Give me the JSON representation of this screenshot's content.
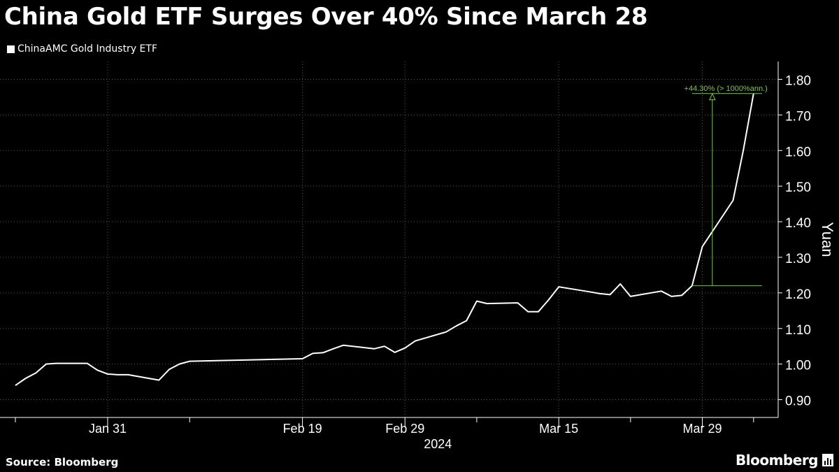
{
  "title": "China Gold ETF Surges Over 40% Since March 28",
  "footer": {
    "source": "Source: Bloomberg",
    "brand": "Bloomberg",
    "brand_icon": "chart-bars-icon"
  },
  "colors": {
    "background": "#000000",
    "line": "#ffffff",
    "annotation": "#7ec850",
    "grid": "#555555"
  },
  "chart_data": {
    "type": "line",
    "title": "China Gold ETF Surges Over 40% Since March 28",
    "ylabel": "Yuan",
    "ylim": [
      0.85,
      1.85
    ],
    "y_ticks": [
      "0.90",
      "1.00",
      "1.10",
      "1.20",
      "1.30",
      "1.40",
      "1.50",
      "1.60",
      "1.70",
      "1.80"
    ],
    "y_axis_side": "right",
    "legend": {
      "placement": "top-left",
      "entries": [
        "ChinaAMC Gold Industry ETF"
      ]
    },
    "x_ticks": [
      "Jan 31",
      "Feb 19",
      "Feb 29",
      "Mar 15",
      "Mar 29"
    ],
    "x_year_label": "2024",
    "grid": true,
    "series": [
      {
        "name": "ChinaAMC Gold Industry ETF",
        "x": [
          "2024-01-22",
          "2024-01-23",
          "2024-01-24",
          "2024-01-25",
          "2024-01-26",
          "2024-01-29",
          "2024-01-30",
          "2024-01-31",
          "2024-02-01",
          "2024-02-02",
          "2024-02-05",
          "2024-02-06",
          "2024-02-07",
          "2024-02-08",
          "2024-02-19",
          "2024-02-20",
          "2024-02-21",
          "2024-02-22",
          "2024-02-23",
          "2024-02-26",
          "2024-02-27",
          "2024-02-28",
          "2024-02-29",
          "2024-03-01",
          "2024-03-04",
          "2024-03-05",
          "2024-03-06",
          "2024-03-07",
          "2024-03-08",
          "2024-03-11",
          "2024-03-12",
          "2024-03-13",
          "2024-03-14",
          "2024-03-15",
          "2024-03-18",
          "2024-03-19",
          "2024-03-20",
          "2024-03-21",
          "2024-03-22",
          "2024-03-25",
          "2024-03-26",
          "2024-03-27",
          "2024-03-28",
          "2024-03-29",
          "2024-04-01",
          "2024-04-02",
          "2024-04-03"
        ],
        "values": [
          0.94,
          0.96,
          0.975,
          1.0,
          1.002,
          1.002,
          0.983,
          0.972,
          0.97,
          0.97,
          0.955,
          0.985,
          1.0,
          1.008,
          1.015,
          1.03,
          1.032,
          1.043,
          1.053,
          1.043,
          1.05,
          1.033,
          1.045,
          1.065,
          1.09,
          1.107,
          1.122,
          1.177,
          1.17,
          1.172,
          1.147,
          1.147,
          1.18,
          1.217,
          1.203,
          1.198,
          1.195,
          1.225,
          1.19,
          1.205,
          1.19,
          1.193,
          1.22,
          1.33,
          1.46,
          1.6,
          1.76
        ]
      }
    ],
    "annotations": [
      {
        "text": "+44.30% (> 1000%ann.)",
        "from": {
          "x": "2024-03-28",
          "y": 1.22
        },
        "to": {
          "x": "2024-04-03",
          "y": 1.76
        }
      }
    ]
  }
}
